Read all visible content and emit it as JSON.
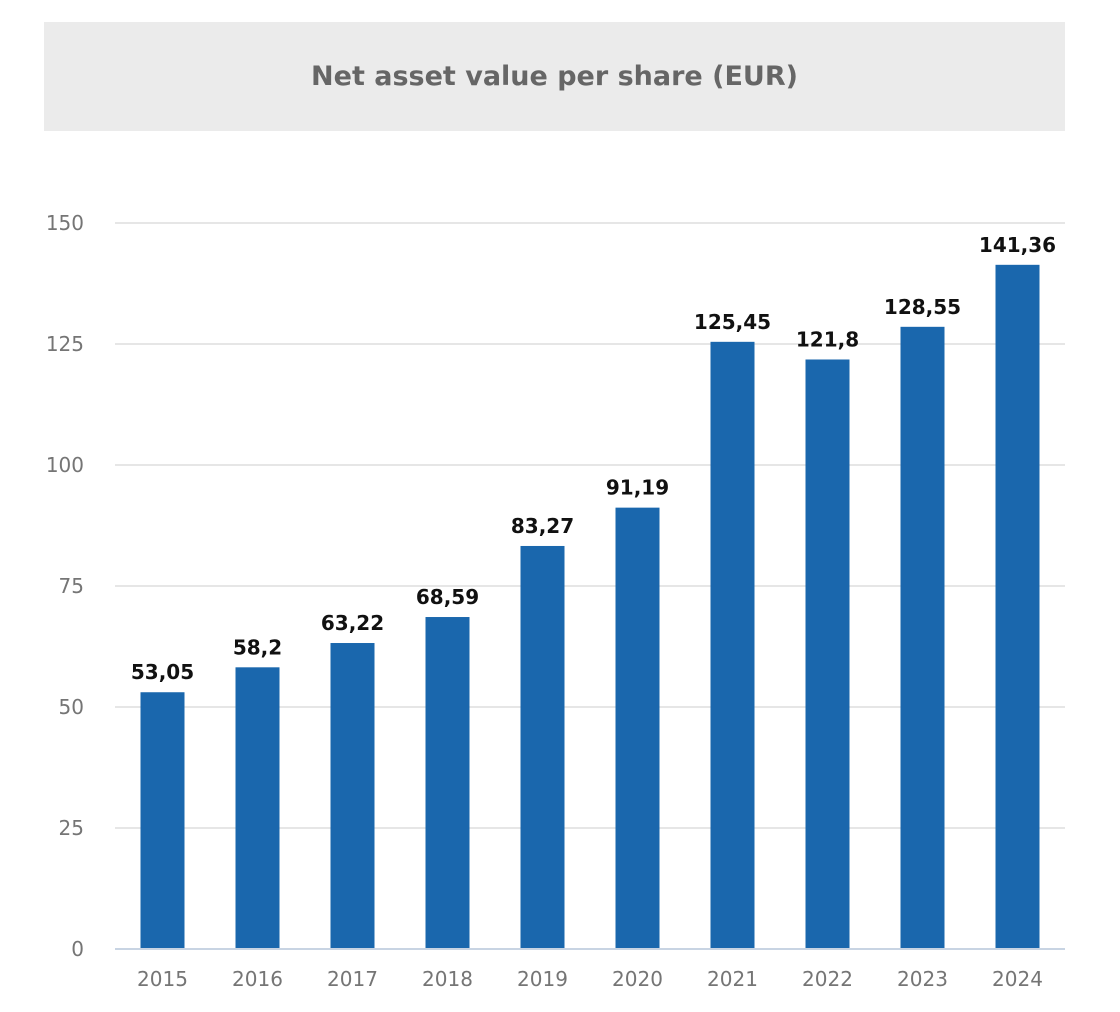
{
  "chart_data": {
    "type": "bar",
    "title": "Net asset value per share (EUR)",
    "categories": [
      "2015",
      "2016",
      "2017",
      "2018",
      "2019",
      "2020",
      "2021",
      "2022",
      "2023",
      "2024"
    ],
    "values": [
      53.05,
      58.2,
      63.22,
      68.59,
      83.27,
      91.19,
      125.45,
      121.8,
      128.55,
      141.36
    ],
    "data_labels": [
      "53,05",
      "58,2",
      "63,22",
      "68,59",
      "83,27",
      "91,19",
      "125,45",
      "121,8",
      "128,55",
      "141,36"
    ],
    "xlabel": "",
    "ylabel": "",
    "ylim": [
      0,
      150
    ],
    "yticks": [
      0,
      25,
      50,
      75,
      100,
      125,
      150
    ],
    "grid": true,
    "legend": "none",
    "colors": {
      "bar": "#1a67ad",
      "grid": "#dddddd",
      "axis": "#c8d4e3",
      "title_background": "#ebebeb"
    }
  }
}
